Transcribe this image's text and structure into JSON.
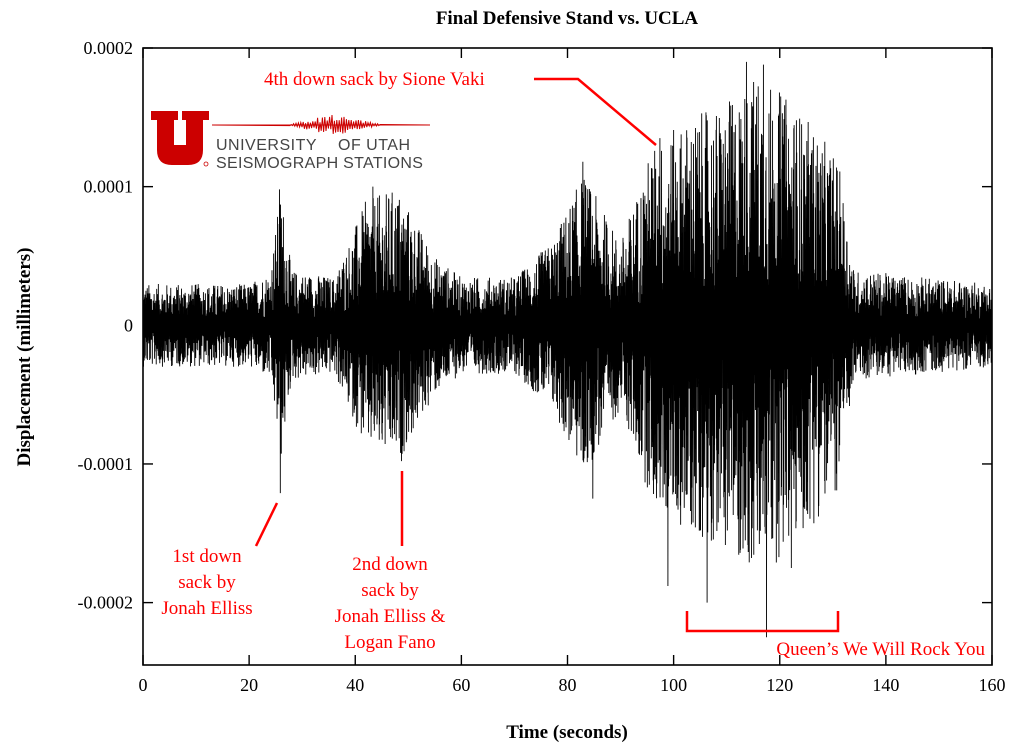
{
  "chart_data": {
    "type": "line",
    "title": "Final Defensive Stand vs. UCLA",
    "xlabel": "Time (seconds)",
    "ylabel": "Displacement (millimeters)",
    "xlim": [
      0,
      160
    ],
    "ylim": [
      -0.000245,
      0.0002
    ],
    "x_ticks": [
      0,
      20,
      40,
      60,
      80,
      100,
      120,
      140,
      160
    ],
    "x_tick_labels": [
      "0",
      "20",
      "40",
      "60",
      "80",
      "100",
      "120",
      "140",
      "160"
    ],
    "y_ticks": [
      0.0002,
      0.0001,
      0,
      -0.0001,
      -0.0002
    ],
    "y_tick_labels": [
      "0.0002",
      "0.0001",
      "0",
      "-0.0001",
      "-0.0002"
    ],
    "grid": false,
    "series": [
      {
        "description_of_signal": "seismic displacement trace",
        "color": "#000000",
        "envelope": [
          {
            "x": 0,
            "amp": 3e-05
          },
          {
            "x": 20,
            "amp": 3e-05
          },
          {
            "x": 24,
            "amp": 4e-05
          },
          {
            "x": 26,
            "amp": 0.0001
          },
          {
            "x": 28,
            "amp": 4e-05
          },
          {
            "x": 36,
            "amp": 3.5e-05
          },
          {
            "x": 42,
            "amp": 9e-05
          },
          {
            "x": 48,
            "amp": 0.0001
          },
          {
            "x": 55,
            "amp": 5e-05
          },
          {
            "x": 60,
            "amp": 3.5e-05
          },
          {
            "x": 70,
            "amp": 3.5e-05
          },
          {
            "x": 77,
            "amp": 6e-05
          },
          {
            "x": 83,
            "amp": 0.00011
          },
          {
            "x": 90,
            "amp": 6e-05
          },
          {
            "x": 96,
            "amp": 0.00013
          },
          {
            "x": 103,
            "amp": 0.00015
          },
          {
            "x": 110,
            "amp": 0.00016
          },
          {
            "x": 116,
            "amp": 0.000185
          },
          {
            "x": 125,
            "amp": 0.00015
          },
          {
            "x": 131,
            "amp": 0.00012
          },
          {
            "x": 134,
            "amp": 4e-05
          },
          {
            "x": 160,
            "amp": 3e-05
          }
        ],
        "peaks": [
          {
            "x": 25.7,
            "y": 9.8e-05
          },
          {
            "x": 25.9,
            "y": -0.000121
          },
          {
            "x": 43.3,
            "y": 0.0001
          },
          {
            "x": 48.7,
            "y": -9.8e-05
          },
          {
            "x": 82.9,
            "y": 0.000118
          },
          {
            "x": 84.8,
            "y": -0.000125
          },
          {
            "x": 97.4,
            "y": 0.000135
          },
          {
            "x": 98.9,
            "y": -0.000188
          },
          {
            "x": 106.3,
            "y": -0.0002
          },
          {
            "x": 113.7,
            "y": 0.00019
          },
          {
            "x": 116.9,
            "y": 0.000188
          },
          {
            "x": 117.5,
            "y": -0.000225
          },
          {
            "x": 122.2,
            "y": -0.000175
          }
        ]
      }
    ],
    "annotations": [
      {
        "text_lines": [
          "4th down sack by Sione Vaki"
        ],
        "color": "#ff0000"
      },
      {
        "text_lines": [
          "1st down",
          "sack by",
          "Jonah Elliss"
        ],
        "color": "#ff0000"
      },
      {
        "text_lines": [
          "2nd down",
          "sack by",
          "Jonah Elliss &",
          "Logan Fano"
        ],
        "color": "#ff0000"
      },
      {
        "text_lines": [
          "Queen’s We Will Rock You"
        ],
        "color": "#ff0000",
        "span_x": [
          102.5,
          131
        ]
      }
    ]
  },
  "logo": {
    "mark": "U",
    "line1": "UNIVERSITY",
    "line1b": "OF UTAH",
    "line2": "SEISMOGRAPH STATIONS",
    "color": "#cc0000"
  },
  "colors": {
    "axis": "#000000",
    "annotation": "#ff0000",
    "logo_red": "#cc0000"
  }
}
